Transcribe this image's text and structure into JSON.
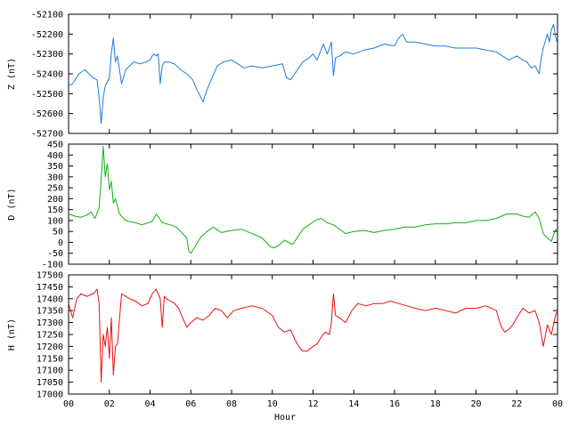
{
  "chart_data": {
    "type": "line",
    "xlabel": "Hour",
    "xlim": [
      0,
      24
    ],
    "x_tick_labels": [
      "00",
      "02",
      "04",
      "06",
      "08",
      "10",
      "12",
      "14",
      "16",
      "18",
      "20",
      "22",
      "00"
    ],
    "panels": [
      {
        "ylabel": "Z (nT)",
        "color": "#1e7be0",
        "ylim": [
          -52700,
          -52100
        ],
        "yticks": [
          -52100,
          -52200,
          -52300,
          -52400,
          -52500,
          -52600,
          -52700
        ],
        "series": [
          {
            "x": [
              0,
              0.2,
              0.5,
              0.8,
              1.0,
              1.2,
              1.4,
              1.5,
              1.6,
              1.7,
              1.8,
              1.9,
              2.0,
              2.1,
              2.2,
              2.3,
              2.4,
              2.6,
              2.8,
              3.0,
              3.2,
              3.5,
              3.8,
              4.0,
              4.1,
              4.2,
              4.3,
              4.4,
              4.5,
              4.6,
              4.7,
              4.9,
              5.2,
              5.5,
              5.8,
              6.1,
              6.3,
              6.5,
              6.6,
              6.8,
              7.0,
              7.3,
              7.6,
              8.0,
              8.3,
              8.6,
              9.0,
              9.5,
              10.0,
              10.5,
              10.7,
              10.9,
              11.1,
              11.3,
              11.5,
              11.8,
              12.0,
              12.2,
              12.5,
              12.7,
              12.9,
              13.0,
              13.1,
              13.3,
              13.6,
              14.0,
              14.5,
              15.0,
              15.5,
              16.0,
              16.2,
              16.4,
              16.6,
              17.0,
              17.5,
              18.0,
              18.5,
              19.0,
              19.5,
              20.0,
              20.5,
              21.0,
              21.3,
              21.6,
              22.0,
              22.3,
              22.5,
              22.7,
              22.9,
              23.1,
              23.2,
              23.3,
              23.5,
              23.6,
              23.7,
              23.8,
              23.9,
              24.0
            ],
            "y": [
              -52460,
              -52450,
              -52400,
              -52380,
              -52400,
              -52420,
              -52430,
              -52520,
              -52650,
              -52520,
              -52460,
              -52440,
              -52420,
              -52300,
              -52220,
              -52340,
              -52310,
              -52450,
              -52380,
              -52360,
              -52340,
              -52350,
              -52340,
              -52330,
              -52310,
              -52300,
              -52310,
              -52300,
              -52450,
              -52360,
              -52340,
              -52340,
              -52350,
              -52380,
              -52400,
              -52430,
              -52480,
              -52520,
              -52540,
              -52480,
              -52430,
              -52360,
              -52340,
              -52330,
              -52350,
              -52370,
              -52360,
              -52370,
              -52360,
              -52350,
              -52420,
              -52430,
              -52400,
              -52370,
              -52340,
              -52320,
              -52300,
              -52330,
              -52250,
              -52300,
              -52240,
              -52410,
              -52320,
              -52310,
              -52290,
              -52300,
              -52280,
              -52270,
              -52250,
              -52260,
              -52220,
              -52200,
              -52240,
              -52240,
              -52250,
              -52260,
              -52260,
              -52270,
              -52270,
              -52270,
              -52280,
              -52290,
              -52310,
              -52330,
              -52310,
              -52330,
              -52340,
              -52370,
              -52360,
              -52400,
              -52320,
              -52270,
              -52200,
              -52240,
              -52180,
              -52150,
              -52210,
              -52250
            ]
          }
        ]
      },
      {
        "ylabel": "D (nT)",
        "color": "#10b010",
        "ylim": [
          -100,
          450
        ],
        "yticks": [
          450,
          400,
          350,
          300,
          250,
          200,
          150,
          100,
          50,
          0,
          -50,
          -100
        ],
        "series": [
          {
            "x": [
              0,
              0.3,
              0.6,
              0.9,
              1.1,
              1.3,
              1.5,
              1.6,
              1.7,
              1.8,
              1.9,
              2.0,
              2.1,
              2.2,
              2.3,
              2.5,
              2.8,
              3.0,
              3.3,
              3.6,
              3.9,
              4.1,
              4.3,
              4.6,
              5.0,
              5.3,
              5.6,
              5.8,
              5.9,
              6.0,
              6.2,
              6.5,
              6.8,
              7.1,
              7.5,
              8.0,
              8.5,
              9.0,
              9.5,
              9.7,
              9.9,
              10.1,
              10.3,
              10.6,
              11.0,
              11.5,
              11.8,
              12.1,
              12.4,
              12.7,
              13.0,
              13.3,
              13.6,
              14.0,
              14.5,
              15.0,
              15.5,
              16.0,
              16.5,
              17.0,
              17.5,
              18.0,
              18.5,
              19.0,
              19.5,
              20.0,
              20.5,
              21.0,
              21.5,
              22.0,
              22.3,
              22.6,
              22.9,
              23.1,
              23.3,
              23.5,
              23.7,
              23.9,
              24.0
            ],
            "y": [
              130,
              120,
              115,
              125,
              140,
              110,
              160,
              290,
              440,
              300,
              360,
              240,
              280,
              180,
              200,
              130,
              100,
              95,
              90,
              80,
              90,
              95,
              130,
              90,
              80,
              70,
              40,
              20,
              -40,
              -50,
              -20,
              25,
              50,
              70,
              45,
              55,
              60,
              40,
              20,
              0,
              -20,
              -25,
              -15,
              10,
              -10,
              60,
              80,
              100,
              110,
              90,
              80,
              60,
              40,
              50,
              55,
              45,
              55,
              60,
              70,
              70,
              80,
              85,
              85,
              90,
              90,
              100,
              100,
              110,
              130,
              130,
              120,
              115,
              140,
              110,
              40,
              20,
              5,
              60,
              50
            ]
          }
        ]
      },
      {
        "ylabel": "H (nT)",
        "color": "#e81010",
        "ylim": [
          17000,
          17500
        ],
        "yticks": [
          17500,
          17450,
          17400,
          17350,
          17300,
          17250,
          17200,
          17150,
          17100,
          17050,
          17000
        ],
        "series": [
          {
            "x": [
              0,
              0.2,
              0.4,
              0.6,
              0.9,
              1.2,
              1.4,
              1.5,
              1.6,
              1.7,
              1.8,
              1.9,
              2.0,
              2.1,
              2.2,
              2.3,
              2.4,
              2.6,
              2.8,
              3.0,
              3.3,
              3.6,
              3.9,
              4.1,
              4.3,
              4.5,
              4.6,
              4.7,
              4.8,
              5.0,
              5.2,
              5.4,
              5.6,
              5.8,
              6.0,
              6.3,
              6.6,
              6.9,
              7.2,
              7.5,
              7.8,
              8.1,
              8.5,
              9.0,
              9.5,
              10.0,
              10.3,
              10.6,
              10.9,
              11.1,
              11.3,
              11.5,
              11.7,
              12.0,
              12.2,
              12.4,
              12.6,
              12.8,
              12.9,
              13.0,
              13.1,
              13.3,
              13.6,
              13.9,
              14.2,
              14.6,
              15.0,
              15.4,
              15.8,
              16.2,
              16.6,
              17.0,
              17.5,
              18.0,
              18.5,
              19.0,
              19.5,
              20.0,
              20.5,
              21.0,
              21.2,
              21.4,
              21.6,
              21.8,
              22.0,
              22.3,
              22.6,
              22.9,
              23.1,
              23.3,
              23.5,
              23.7,
              23.9,
              24.0
            ],
            "y": [
              17380,
              17320,
              17400,
              17420,
              17410,
              17420,
              17440,
              17380,
              17050,
              17250,
              17200,
              17280,
              17150,
              17320,
              17080,
              17200,
              17210,
              17420,
              17410,
              17400,
              17390,
              17370,
              17380,
              17420,
              17440,
              17400,
              17280,
              17410,
              17400,
              17390,
              17380,
              17360,
              17320,
              17280,
              17300,
              17320,
              17310,
              17330,
              17360,
              17350,
              17320,
              17350,
              17360,
              17370,
              17360,
              17330,
              17280,
              17260,
              17270,
              17230,
              17200,
              17180,
              17180,
              17200,
              17210,
              17240,
              17260,
              17250,
              17300,
              17420,
              17330,
              17320,
              17300,
              17350,
              17380,
              17370,
              17380,
              17380,
              17390,
              17380,
              17370,
              17360,
              17350,
              17360,
              17350,
              17340,
              17360,
              17360,
              17370,
              17350,
              17290,
              17260,
              17270,
              17290,
              17320,
              17360,
              17340,
              17350,
              17300,
              17200,
              17290,
              17250,
              17330,
              17350
            ]
          }
        ]
      }
    ]
  }
}
